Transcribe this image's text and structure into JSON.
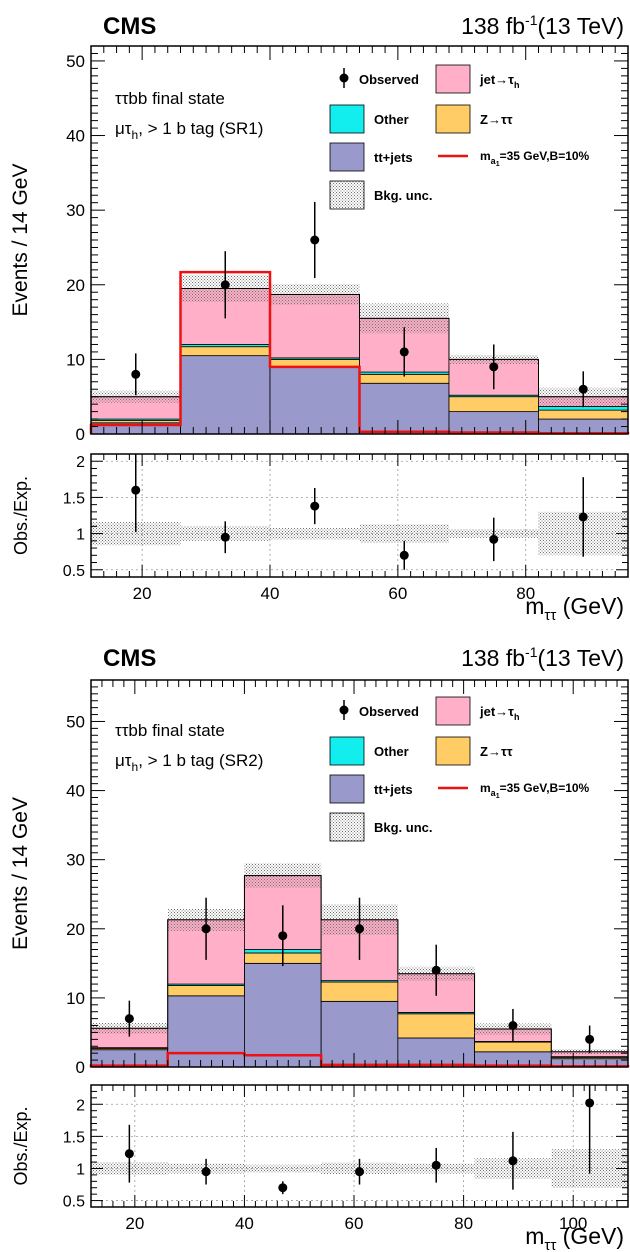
{
  "chart_data": [
    {
      "type": "bar",
      "subtype": "stacked-histogram-with-ratio",
      "experiment": "CMS",
      "lumi": "138 fb",
      "lumi_exp": "-1",
      "energy": "(13 TeV)",
      "annotation_line1": "ττbb final state",
      "annotation_line2_main": "μτ",
      "annotation_line2_sub": "h",
      "annotation_line2_rest": ", > 1 b tag (SR1)",
      "ylabel": "Events / 14 GeV",
      "ratio_ylabel": "Obs./Exp.",
      "xlabel_main": "m",
      "xlabel_sub": "ττ",
      "xlabel_unit": " (GeV)",
      "xlim": [
        12,
        96
      ],
      "ylim": [
        0,
        52
      ],
      "ratio_ylim": [
        0.4,
        2.1
      ],
      "x_ticks": [
        20,
        40,
        60,
        80
      ],
      "y_ticks": [
        0,
        10,
        20,
        30,
        40,
        50
      ],
      "ratio_ticks": [
        "0.5",
        "1",
        "1.5",
        "2"
      ],
      "ratio_tick_values": [
        0.5,
        1,
        1.5,
        2
      ],
      "grid": true,
      "bin_edges": [
        12,
        26,
        40,
        54,
        68,
        82,
        96
      ],
      "stack": [
        {
          "key": "ttjets",
          "values": [
            1.5,
            10.5,
            9.0,
            6.8,
            3.0,
            2.0
          ]
        },
        {
          "key": "ztt",
          "values": [
            0.3,
            1.2,
            1.0,
            1.2,
            2.0,
            1.2
          ]
        },
        {
          "key": "other",
          "values": [
            0.2,
            0.3,
            0.2,
            0.3,
            0.2,
            0.5
          ]
        },
        {
          "key": "jettau",
          "values": [
            3.0,
            7.5,
            8.5,
            7.2,
            4.8,
            1.3
          ]
        }
      ],
      "bkg_unc": [
        0.8,
        1.8,
        1.4,
        2.0,
        0.6,
        1.2
      ],
      "signal": [
        1.2,
        21.7,
        9.0,
        0.3,
        0.2,
        0.1
      ],
      "observed": {
        "x": [
          19,
          33,
          47,
          61,
          75,
          89
        ],
        "y": [
          8,
          20,
          26,
          11,
          9,
          6
        ],
        "err": [
          2.8,
          4.5,
          5.1,
          3.3,
          3.0,
          2.4
        ]
      },
      "ratio": {
        "x": [
          19,
          33,
          47,
          61,
          75,
          89
        ],
        "y": [
          1.6,
          0.95,
          1.38,
          0.7,
          0.92,
          1.23
        ],
        "err": [
          0.58,
          0.22,
          0.25,
          0.2,
          0.3,
          0.55
        ],
        "band": [
          0.16,
          0.1,
          0.08,
          0.13,
          0.06,
          0.3
        ]
      },
      "legend": {
        "observed": "Observed",
        "jettau_main": "jet→τ",
        "jettau_sub": "h",
        "other": "Other",
        "ztt": "Z→ττ",
        "ttjets": "tt+jets",
        "signal_m": "m",
        "signal_sub": "a",
        "signal_subsub": "1",
        "signal_rest": "=35 GeV,B=10%",
        "bkg_unc": "Bkg. unc."
      }
    },
    {
      "type": "bar",
      "subtype": "stacked-histogram-with-ratio",
      "experiment": "CMS",
      "lumi": "138 fb",
      "lumi_exp": "-1",
      "energy": "(13 TeV)",
      "annotation_line1": "ττbb final state",
      "annotation_line2_main": "μτ",
      "annotation_line2_sub": "h",
      "annotation_line2_rest": ", > 1 b tag (SR2)",
      "ylabel": "Events / 14 GeV",
      "ratio_ylabel": "Obs./Exp.",
      "xlabel_main": "m",
      "xlabel_sub": "ττ",
      "xlabel_unit": " (GeV)",
      "xlim": [
        12,
        110
      ],
      "ylim": [
        0,
        56
      ],
      "ratio_ylim": [
        0.4,
        2.3
      ],
      "x_ticks": [
        20,
        40,
        60,
        80,
        100
      ],
      "y_ticks": [
        0,
        10,
        20,
        30,
        40,
        50
      ],
      "ratio_ticks": [
        "0.5",
        "1",
        "1.5",
        "2"
      ],
      "ratio_tick_values": [
        0.5,
        1,
        1.5,
        2
      ],
      "grid": true,
      "bin_edges": [
        12,
        26,
        40,
        54,
        68,
        82,
        96,
        110
      ],
      "stack": [
        {
          "key": "ttjets",
          "values": [
            2.5,
            10.3,
            15.0,
            9.5,
            4.2,
            2.2,
            1.2
          ]
        },
        {
          "key": "ztt",
          "values": [
            0.2,
            1.5,
            1.5,
            2.8,
            3.5,
            1.4,
            0.2
          ]
        },
        {
          "key": "other",
          "values": [
            0.1,
            0.2,
            0.5,
            0.2,
            0.2,
            0.1,
            0.1
          ]
        },
        {
          "key": "jettau",
          "values": [
            2.8,
            9.3,
            10.7,
            8.8,
            5.6,
            1.8,
            0.7
          ]
        }
      ],
      "bkg_unc": [
        0.8,
        1.6,
        1.8,
        2.2,
        1.0,
        0.8,
        0.4
      ],
      "signal": [
        0.2,
        2.0,
        1.7,
        0.3,
        0.3,
        0.2,
        0.1
      ],
      "observed": {
        "x": [
          19,
          33,
          47,
          61,
          75,
          89,
          103
        ],
        "y": [
          7,
          20,
          19,
          20,
          14,
          6,
          4
        ],
        "err": [
          2.6,
          4.5,
          4.4,
          4.5,
          3.7,
          2.4,
          2.0
        ]
      },
      "ratio": {
        "x": [
          19,
          33,
          47,
          61,
          75,
          89,
          103
        ],
        "y": [
          1.23,
          0.95,
          0.7,
          0.95,
          1.05,
          1.12,
          2.02
        ],
        "err": [
          0.45,
          0.2,
          0.1,
          0.2,
          0.27,
          0.45,
          1.1
        ],
        "band": [
          0.1,
          0.08,
          0.06,
          0.09,
          0.08,
          0.16,
          0.3
        ]
      },
      "legend": {
        "observed": "Observed",
        "jettau_main": "jet→τ",
        "jettau_sub": "h",
        "other": "Other",
        "ztt": "Z→ττ",
        "ttjets": "tt+jets",
        "signal_m": "m",
        "signal_sub": "a",
        "signal_subsub": "1",
        "signal_rest": "=35 GeV,B=10%",
        "bkg_unc": "Bkg. unc."
      }
    }
  ],
  "colors": {
    "ttjets": "#9999cc",
    "ztt": "#ffcc66",
    "other": "#12eeee",
    "jettau": "#ffb0c8",
    "signal": "#ee1111",
    "unc": "#9a9a9a",
    "grid": "#9a9a9a"
  }
}
